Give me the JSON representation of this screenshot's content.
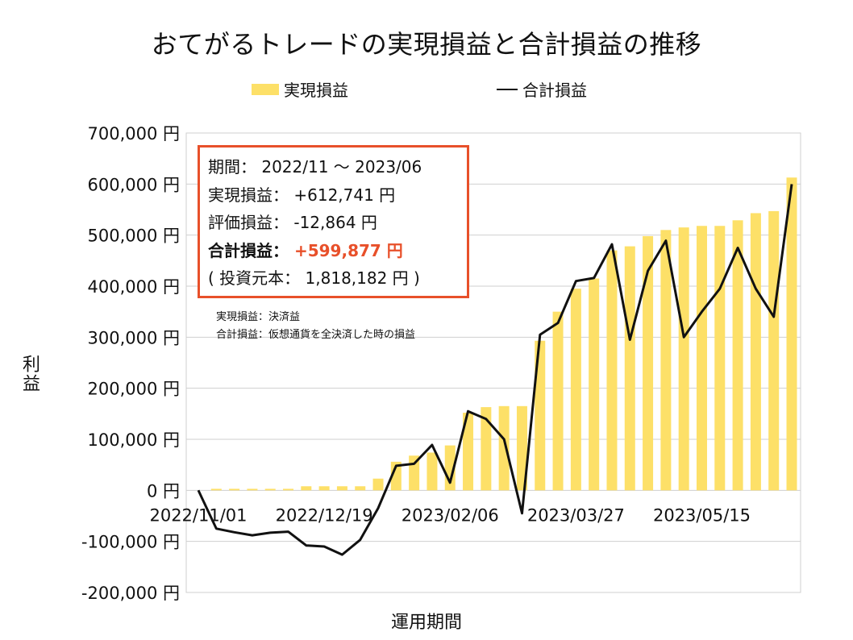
{
  "title": "おてがるトレードの実現損益と合計損益の推移",
  "legend": {
    "bar_label": "実現損益",
    "line_label": "合計損益"
  },
  "y_axis_label": "利益",
  "x_axis_label": "運用期間",
  "info_box": {
    "period_label": "期間：",
    "period_value": "2022/11 ～ 2023/06",
    "realized_label": "実現損益：",
    "realized_value": "+612,741 円",
    "unrealized_label": "評価損益：",
    "unrealized_value": "-12,864 円",
    "total_label": "合計損益：",
    "total_value": "+599,877 円",
    "principal_open": "( 投資元本：",
    "principal_value": "1,818,182 円",
    "principal_close": ")"
  },
  "notes": [
    "実現損益：決済益",
    "合計損益：仮想通貨を全決済した時の損益"
  ],
  "colors": {
    "bar": "#fde068",
    "line": "#111111",
    "accent": "#e8502a",
    "grid": "#cfcfcf"
  },
  "chart_data": {
    "type": "bar",
    "x_tick_labels": [
      "2022/11/01",
      "2022/12/19",
      "2023/02/06",
      "2023/03/27",
      "2023/05/15"
    ],
    "x_tick_indices": [
      0,
      7,
      14,
      21,
      28
    ],
    "y_tick_labels": [
      "700,000 円",
      "600,000 円",
      "500,000 円",
      "400,000 円",
      "300,000 円",
      "200,000 円",
      "100,000 円",
      "0 円",
      "-100,000 円",
      "-200,000 円"
    ],
    "ylim": [
      -200000,
      700000
    ],
    "ystep": 100000,
    "n_points": 34,
    "grid": true,
    "legend_position": "top",
    "series": [
      {
        "name": "実現損益",
        "type": "bar",
        "values": [
          0,
          3000,
          3000,
          3000,
          3000,
          3000,
          8000,
          8000,
          8000,
          8000,
          23000,
          56000,
          68000,
          74000,
          88000,
          152000,
          163000,
          165000,
          165000,
          293000,
          350000,
          395000,
          415000,
          470000,
          478000,
          498000,
          510000,
          515000,
          518000,
          518000,
          529000,
          543000,
          547000,
          612741
        ]
      },
      {
        "name": "合計損益",
        "type": "line",
        "values": [
          0,
          -75000,
          -82000,
          -88000,
          -83000,
          -81000,
          -108000,
          -110000,
          -126000,
          -97000,
          -35000,
          48000,
          52000,
          89000,
          15000,
          155000,
          140000,
          100000,
          -45000,
          305000,
          328000,
          410000,
          416000,
          482000,
          295000,
          430000,
          489000,
          300000,
          350000,
          395000,
          475000,
          395000,
          340000,
          599877
        ]
      }
    ]
  }
}
